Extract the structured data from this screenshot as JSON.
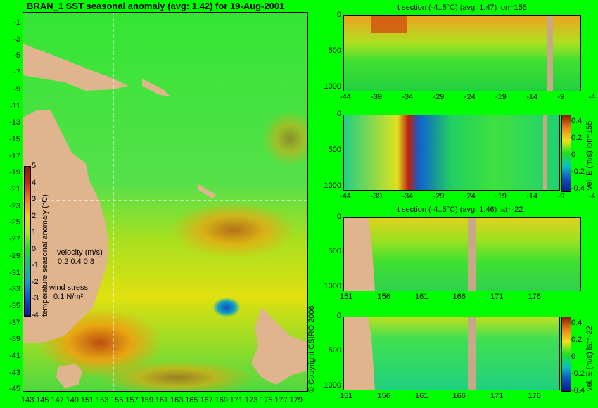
{
  "chart_data": [
    {
      "type": "heatmap",
      "title": "BRAN_1 SST seasonal anomaly (avg: 1.42) for 19-Aug-2001",
      "y_ticks": [
        "-1",
        "-3",
        "-5",
        "-7",
        "-9",
        "-11",
        "-13",
        "-15",
        "-17",
        "-19",
        "-21",
        "-23",
        "-25",
        "-27",
        "-29",
        "-31",
        "-33",
        "-35",
        "-37",
        "-39",
        "-41",
        "-43",
        "-45"
      ],
      "x_ticks": [
        "143",
        "145",
        "147",
        "149",
        "151",
        "153",
        "155",
        "157",
        "159",
        "161",
        "163",
        "165",
        "167",
        "169",
        "171",
        "173",
        "175",
        "177",
        "179"
      ],
      "colorbar": {
        "label": "temperature seasonal anomaly (°C)",
        "ticks": [
          "5",
          "4",
          "3",
          "2",
          "1",
          "0",
          "-1",
          "-2",
          "-3",
          "-4"
        ]
      },
      "velocity_legend": {
        "title": "velocity (m/s)",
        "values": "0.2 0.4 0.8"
      },
      "wind_legend": {
        "title": "wind stress",
        "value": "0.1 N/m²"
      },
      "crosshair": {
        "lon": 155,
        "lat": -22
      }
    },
    {
      "type": "heatmap",
      "title": "t section (-4..5°C) (avg: 1.47) lon=155",
      "x_ticks": [
        "-44",
        "-39",
        "-34",
        "-29",
        "-24",
        "-19",
        "-14",
        "-9",
        "-4"
      ],
      "y_ticks": [
        "0",
        "500",
        "1000"
      ]
    },
    {
      "type": "heatmap",
      "title": "",
      "x_ticks": [
        "-44",
        "-39",
        "-34",
        "-29",
        "-24",
        "-19",
        "-14",
        "-9",
        "-4"
      ],
      "y_ticks": [
        "0",
        "500",
        "1000"
      ],
      "colorbar": {
        "label": "vel. E (m/s) lon=155",
        "ticks": [
          "0.4",
          "0.2",
          "0",
          "-0.2",
          "-0.4"
        ]
      }
    },
    {
      "type": "heatmap",
      "title": "t section (-4..5°C) (avg: 1.46) lat=-22",
      "x_ticks": [
        "151",
        "156",
        "161",
        "166",
        "171",
        "176"
      ],
      "y_ticks": [
        "0",
        "500",
        "1000"
      ]
    },
    {
      "type": "heatmap",
      "title": "",
      "x_ticks": [
        "151",
        "156",
        "161",
        "166",
        "171",
        "176"
      ],
      "y_ticks": [
        "0",
        "500",
        "1000"
      ],
      "colorbar": {
        "label": "vel. E (m/s) lat=-22",
        "ticks": [
          "0.4",
          "0.2",
          "0",
          "-0.2",
          "-0.4"
        ]
      }
    }
  ],
  "copyright": "© Copyright CSIRO 2006"
}
